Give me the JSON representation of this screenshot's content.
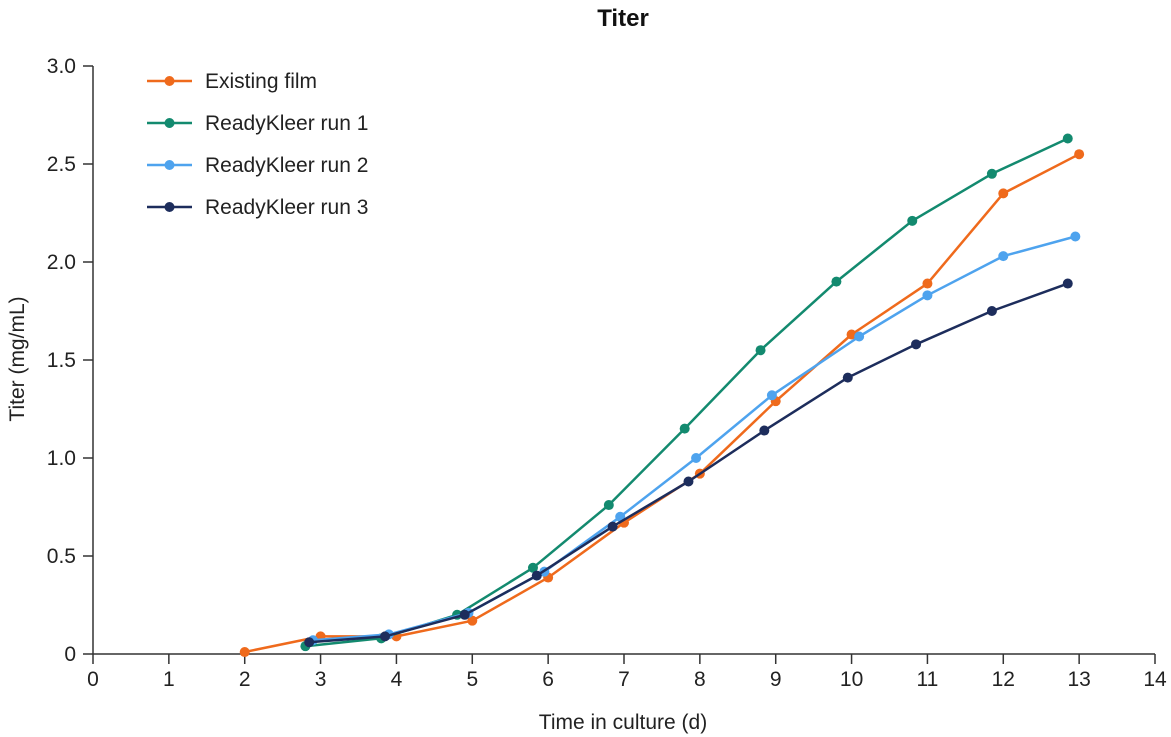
{
  "chart_data": {
    "type": "line",
    "title": "Titer",
    "xlabel": "Time in culture (d)",
    "ylabel": "Titer (mg/mL)",
    "xlim": [
      0,
      14
    ],
    "ylim": [
      0,
      3.0
    ],
    "x_ticks": [
      "0",
      "1",
      "2",
      "3",
      "4",
      "5",
      "6",
      "7",
      "8",
      "9",
      "10",
      "11",
      "12",
      "13",
      "14"
    ],
    "y_ticks": [
      "0",
      "0.5",
      "1.0",
      "1.5",
      "2.0",
      "2.5",
      "3.0"
    ],
    "grid": false,
    "legend_position": "top-left",
    "series": [
      {
        "name": "Existing film",
        "color": "#ef6a1c",
        "x": [
          2.0,
          3.0,
          4.0,
          5.0,
          6.0,
          7.0,
          8.0,
          9.0,
          10.0,
          11.0,
          12.0,
          13.0
        ],
        "y": [
          0.01,
          0.09,
          0.09,
          0.17,
          0.39,
          0.67,
          0.92,
          1.29,
          1.63,
          1.89,
          2.35,
          2.55
        ]
      },
      {
        "name": "ReadyKleer run 1",
        "color": "#138a6f",
        "x": [
          2.8,
          3.8,
          4.8,
          5.8,
          6.8,
          7.8,
          8.8,
          9.8,
          10.8,
          11.85,
          12.85
        ],
        "y": [
          0.04,
          0.08,
          0.2,
          0.44,
          0.76,
          1.15,
          1.55,
          1.9,
          2.21,
          2.45,
          2.63
        ]
      },
      {
        "name": "ReadyKleer run 2",
        "color": "#4ea3ee",
        "x": [
          2.9,
          3.9,
          4.95,
          5.95,
          6.95,
          7.95,
          8.95,
          10.1,
          11.0,
          12.0,
          12.95
        ],
        "y": [
          0.07,
          0.1,
          0.21,
          0.42,
          0.7,
          1.0,
          1.32,
          1.62,
          1.83,
          2.03,
          2.13
        ]
      },
      {
        "name": "ReadyKleer run 3",
        "color": "#1d2d5c",
        "x": [
          2.85,
          3.85,
          4.9,
          5.85,
          6.85,
          7.85,
          8.85,
          9.95,
          10.85,
          11.85,
          12.85
        ],
        "y": [
          0.06,
          0.09,
          0.2,
          0.4,
          0.65,
          0.88,
          1.14,
          1.41,
          1.58,
          1.75,
          1.89
        ]
      }
    ]
  }
}
